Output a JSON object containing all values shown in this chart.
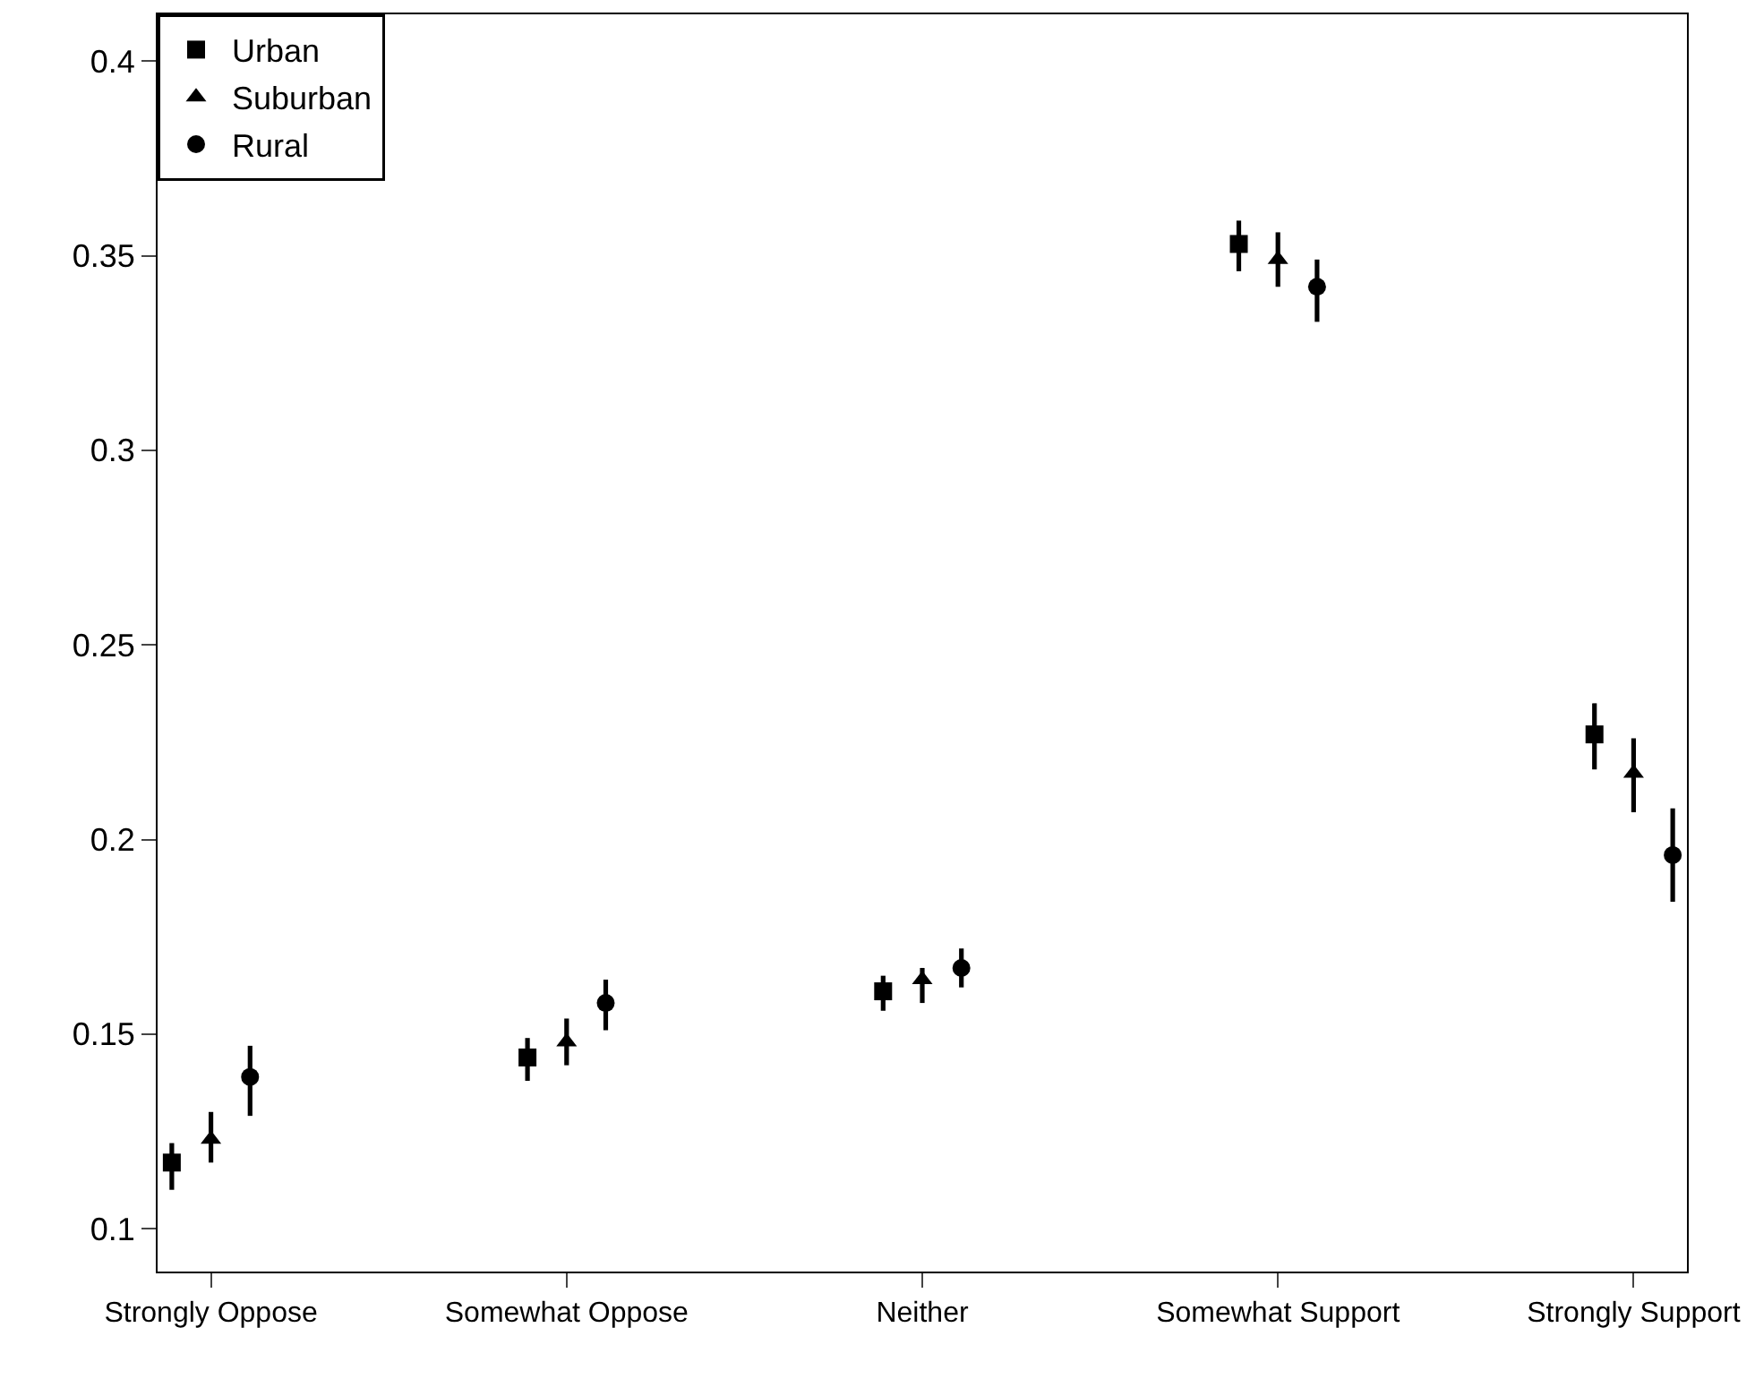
{
  "chart_data": {
    "type": "scatter",
    "categories": [
      "Strongly Oppose",
      "Somewhat Oppose",
      "Neither",
      "Somewhat Support",
      "Strongly Support"
    ],
    "series": [
      {
        "name": "Urban",
        "color": "#000000",
        "marker": "square",
        "values": [
          0.117,
          0.144,
          0.161,
          0.353,
          0.227
        ],
        "errors": [
          [
            0.11,
            0.122
          ],
          [
            0.138,
            0.149
          ],
          [
            0.156,
            0.165
          ],
          [
            0.346,
            0.359
          ],
          [
            0.218,
            0.235
          ]
        ]
      },
      {
        "name": "Suburban",
        "color": "#000000",
        "marker": "triangle",
        "values": [
          0.123,
          0.148,
          0.164,
          0.349,
          0.217
        ],
        "errors": [
          [
            0.117,
            0.13
          ],
          [
            0.142,
            0.154
          ],
          [
            0.158,
            0.167
          ],
          [
            0.342,
            0.356
          ],
          [
            0.207,
            0.226
          ]
        ]
      },
      {
        "name": "Rural",
        "color": "#000000",
        "marker": "circle",
        "values": [
          0.139,
          0.158,
          0.167,
          0.342,
          0.196
        ],
        "errors": [
          [
            0.129,
            0.147
          ],
          [
            0.151,
            0.164
          ],
          [
            0.162,
            0.172
          ],
          [
            0.333,
            0.349
          ],
          [
            0.184,
            0.208
          ]
        ]
      }
    ],
    "ylim": [
      0.089,
      0.412
    ],
    "yticks": [
      0.1,
      0.15,
      0.2,
      0.25,
      0.3,
      0.35,
      0.4
    ],
    "legend": "top left"
  }
}
